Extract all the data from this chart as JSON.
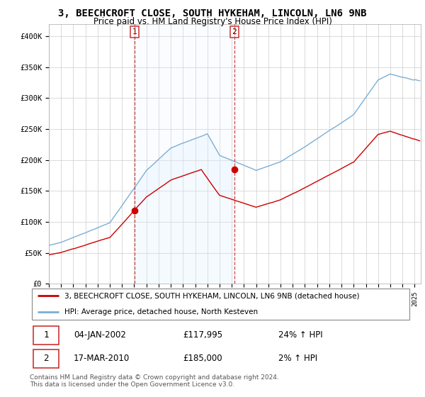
{
  "title": "3, BEECHCROFT CLOSE, SOUTH HYKEHAM, LINCOLN, LN6 9NB",
  "subtitle": "Price paid vs. HM Land Registry's House Price Index (HPI)",
  "legend_line1": "3, BEECHCROFT CLOSE, SOUTH HYKEHAM, LINCOLN, LN6 9NB (detached house)",
  "legend_line2": "HPI: Average price, detached house, North Kesteven",
  "purchase1_date": "04-JAN-2002",
  "purchase1_price": "£117,995",
  "purchase1_hpi": "24% ↑ HPI",
  "purchase2_date": "17-MAR-2010",
  "purchase2_price": "£185,000",
  "purchase2_hpi": "2% ↑ HPI",
  "footer": "Contains HM Land Registry data © Crown copyright and database right 2024.\nThis data is licensed under the Open Government Licence v3.0.",
  "red_color": "#cc0000",
  "blue_color": "#7bafd4",
  "blue_fill": "#ddeeff",
  "vline_color": "#cc3333",
  "grid_color": "#cccccc",
  "background_color": "#ffffff",
  "ylim": [
    0,
    420000
  ],
  "yticks": [
    0,
    50000,
    100000,
    150000,
    200000,
    250000,
    300000,
    350000,
    400000
  ],
  "ytick_labels": [
    "£0",
    "£50K",
    "£100K",
    "£150K",
    "£200K",
    "£250K",
    "£300K",
    "£350K",
    "£400K"
  ],
  "purchase1_x": 2002.04,
  "purchase1_y": 117995,
  "purchase2_x": 2010.21,
  "purchase2_y": 185000,
  "xmin": 1995,
  "xmax": 2025.5
}
